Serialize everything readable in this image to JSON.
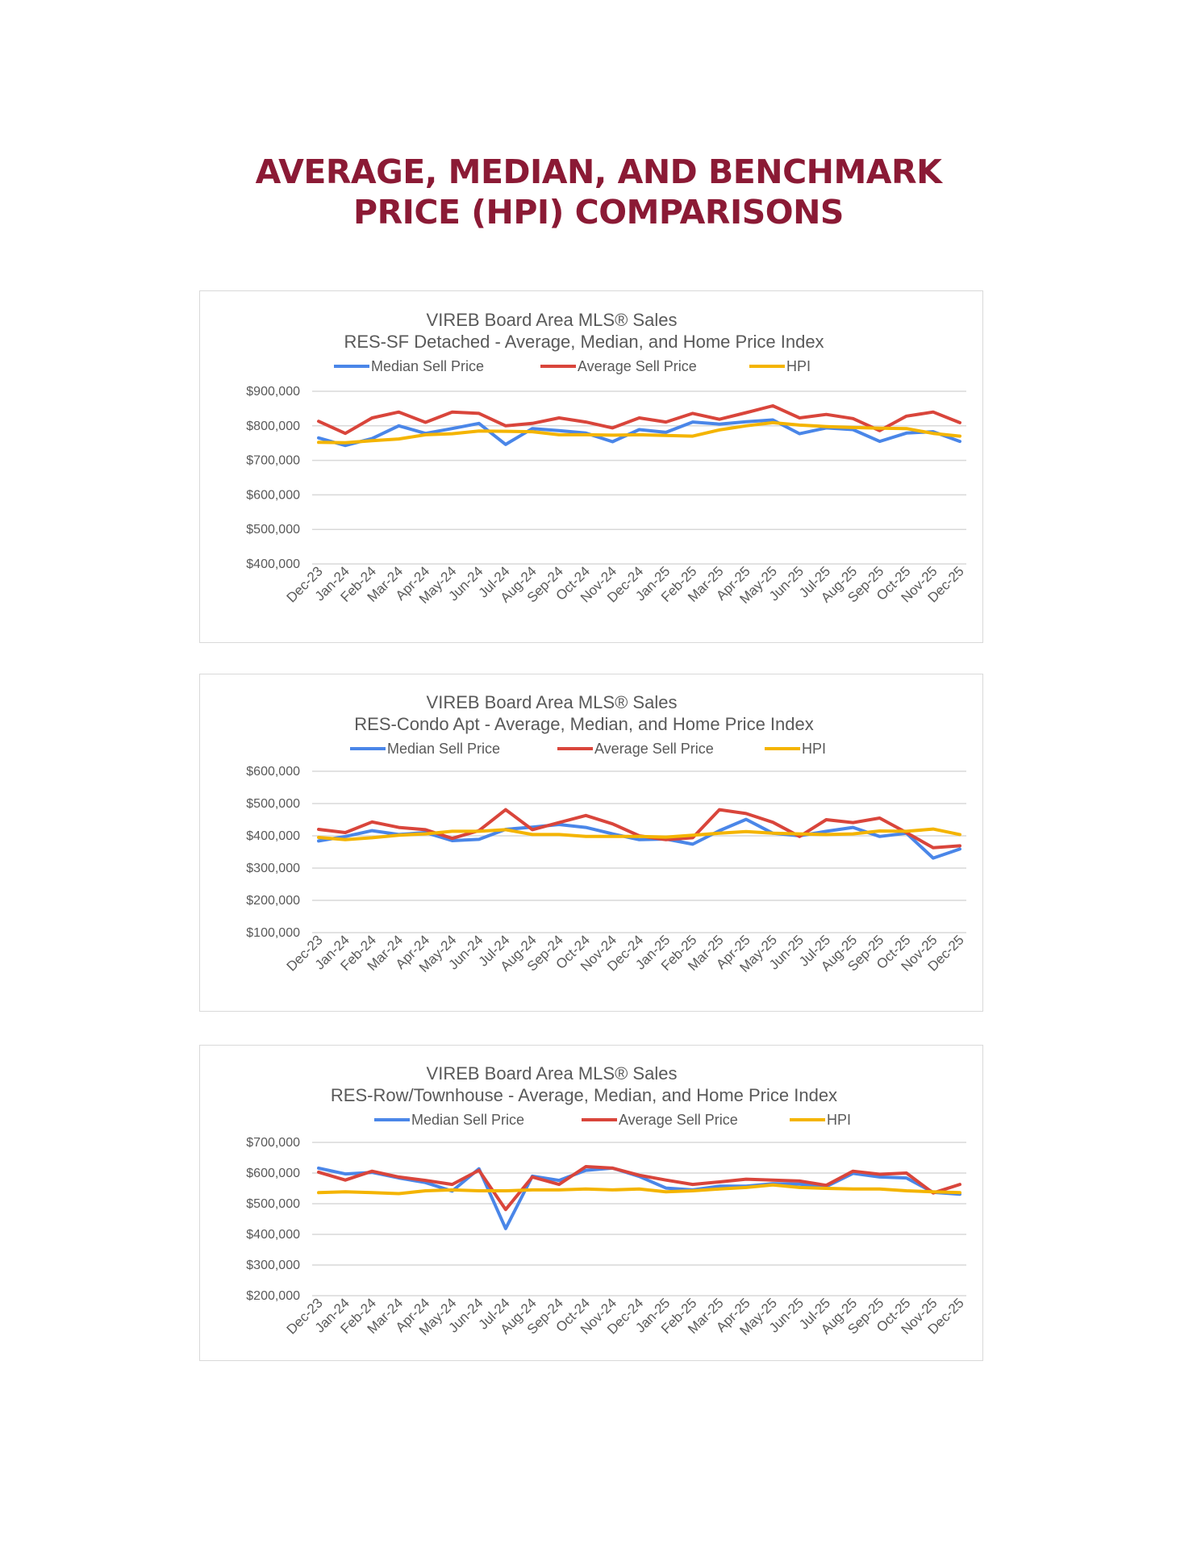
{
  "page": {
    "title_line1": "AVERAGE, MEDIAN, AND BENCHMARK",
    "title_line2": "PRICE (HPI) COMPARISONS",
    "title_color": "#8b1a35"
  },
  "colors": {
    "median": "#4a86e8",
    "average": "#d9453b",
    "hpi": "#f4b400"
  },
  "chart_data": [
    {
      "type": "line",
      "title": "VIREB Board Area MLS® Sales",
      "subtitle": "RES-SF Detached - Average, Median, and Home Price Index",
      "legend_position": "top",
      "grid": true,
      "ylim": [
        400000,
        900000
      ],
      "yticks": [
        900000,
        800000,
        700000,
        600000,
        500000,
        400000
      ],
      "ytick_labels": [
        "$900,000",
        "$800,000",
        "$700,000",
        "$600,000",
        "$500,000",
        "$400,000"
      ],
      "categories": [
        "Dec-23",
        "Jan-24",
        "Feb-24",
        "Mar-24",
        "Apr-24",
        "May-24",
        "Jun-24",
        "Jul-24",
        "Aug-24",
        "Sep-24",
        "Oct-24",
        "Nov-24",
        "Dec-24",
        "Jan-25",
        "Feb-25",
        "Mar-25",
        "Apr-25",
        "May-25",
        "Jun-25",
        "Jul-25",
        "Aug-25",
        "Sep-25",
        "Oct-25",
        "Nov-25",
        "Dec-25"
      ],
      "series": [
        {
          "name": "Median Sell Price",
          "color_key": "median",
          "values": [
            765000,
            743000,
            763000,
            800000,
            778000,
            792000,
            807000,
            746000,
            792000,
            786000,
            779000,
            754000,
            789000,
            781000,
            811000,
            805000,
            812000,
            817000,
            777000,
            794000,
            789000,
            755000,
            779000,
            783000,
            755000
          ]
        },
        {
          "name": "Average Sell Price",
          "color_key": "average",
          "values": [
            813000,
            778000,
            823000,
            840000,
            810000,
            840000,
            836000,
            800000,
            807000,
            823000,
            811000,
            794000,
            823000,
            811000,
            836000,
            819000,
            838000,
            858000,
            823000,
            833000,
            821000,
            786000,
            828000,
            840000,
            809000
          ]
        },
        {
          "name": "HPI",
          "color_key": "hpi",
          "values": [
            752000,
            751000,
            757000,
            762000,
            774000,
            777000,
            785000,
            784000,
            783000,
            774000,
            774000,
            773000,
            774000,
            772000,
            770000,
            788000,
            800000,
            809000,
            802000,
            798000,
            795000,
            793000,
            792000,
            778000,
            770000
          ]
        }
      ]
    },
    {
      "type": "line",
      "title": "VIREB Board Area MLS® Sales",
      "subtitle": "RES-Condo Apt - Average, Median, and Home Price Index",
      "legend_position": "top",
      "grid": true,
      "ylim": [
        100000,
        600000
      ],
      "yticks": [
        600000,
        500000,
        400000,
        300000,
        200000,
        100000
      ],
      "ytick_labels": [
        "$600,000",
        "$500,000",
        "$400,000",
        "$300,000",
        "$200,000",
        "$100,000"
      ],
      "categories": [
        "Dec-23",
        "Jan-24",
        "Feb-24",
        "Mar-24",
        "Apr-24",
        "May-24",
        "Jun-24",
        "Jul-24",
        "Aug-24",
        "Sep-24",
        "Oct-24",
        "Nov-24",
        "Dec-24",
        "Jan-25",
        "Feb-25",
        "Mar-25",
        "Apr-25",
        "May-25",
        "Jun-25",
        "Jul-25",
        "Aug-25",
        "Sep-25",
        "Oct-25",
        "Nov-25",
        "Dec-25"
      ],
      "series": [
        {
          "name": "Median Sell Price",
          "color_key": "median",
          "values": [
            384000,
            398000,
            416000,
            404000,
            410000,
            385000,
            389000,
            420000,
            427000,
            435000,
            426000,
            406000,
            388000,
            390000,
            374000,
            416000,
            451000,
            408000,
            400000,
            414000,
            426000,
            398000,
            408000,
            331000,
            359000
          ]
        },
        {
          "name": "Average Sell Price",
          "color_key": "average",
          "values": [
            420000,
            410000,
            443000,
            426000,
            419000,
            392000,
            416000,
            481000,
            419000,
            441000,
            463000,
            437000,
            400000,
            388000,
            394000,
            481000,
            469000,
            442000,
            398000,
            450000,
            441000,
            455000,
            410000,
            363000,
            369000
          ]
        },
        {
          "name": "HPI",
          "color_key": "hpi",
          "values": [
            395000,
            388000,
            394000,
            402000,
            406000,
            414000,
            414000,
            419000,
            404000,
            404000,
            398000,
            398000,
            398000,
            396000,
            402000,
            408000,
            413000,
            408000,
            406000,
            404000,
            406000,
            415000,
            414000,
            421000,
            404000
          ]
        }
      ]
    },
    {
      "type": "line",
      "title": "VIREB Board Area MLS® Sales",
      "subtitle": "RES-Row/Townhouse - Average, Median, and Home Price Index",
      "legend_position": "top",
      "grid": true,
      "ylim": [
        200000,
        700000
      ],
      "yticks": [
        700000,
        600000,
        500000,
        400000,
        300000,
        200000
      ],
      "ytick_labels": [
        "$700,000",
        "$600,000",
        "$500,000",
        "$400,000",
        "$300,000",
        "$200,000"
      ],
      "categories": [
        "Dec-23",
        "Jan-24",
        "Feb-24",
        "Mar-24",
        "Apr-24",
        "May-24",
        "Jun-24",
        "Jul-24",
        "Aug-24",
        "Sep-24",
        "Oct-24",
        "Nov-24",
        "Dec-24",
        "Jan-25",
        "Feb-25",
        "Mar-25",
        "Apr-25",
        "May-25",
        "Jun-25",
        "Jul-25",
        "Aug-25",
        "Sep-25",
        "Oct-25",
        "Nov-25",
        "Dec-25"
      ],
      "series": [
        {
          "name": "Median Sell Price",
          "color_key": "median",
          "values": [
            616000,
            597000,
            602000,
            584000,
            569000,
            541000,
            614000,
            419000,
            590000,
            576000,
            609000,
            616000,
            589000,
            551000,
            545000,
            557000,
            557000,
            565000,
            564000,
            556000,
            599000,
            587000,
            584000,
            537000,
            531000
          ]
        },
        {
          "name": "Average Sell Price",
          "color_key": "average",
          "values": [
            603000,
            577000,
            606000,
            587000,
            576000,
            563000,
            609000,
            481000,
            587000,
            563000,
            621000,
            616000,
            593000,
            577000,
            563000,
            571000,
            580000,
            577000,
            574000,
            560000,
            606000,
            596000,
            600000,
            535000,
            563000
          ]
        },
        {
          "name": "HPI",
          "color_key": "hpi",
          "values": [
            536000,
            539000,
            536000,
            533000,
            542000,
            545000,
            542000,
            542000,
            545000,
            545000,
            548000,
            545000,
            548000,
            539000,
            542000,
            548000,
            553000,
            561000,
            553000,
            550000,
            548000,
            548000,
            542000,
            539000,
            536000
          ]
        }
      ]
    }
  ]
}
